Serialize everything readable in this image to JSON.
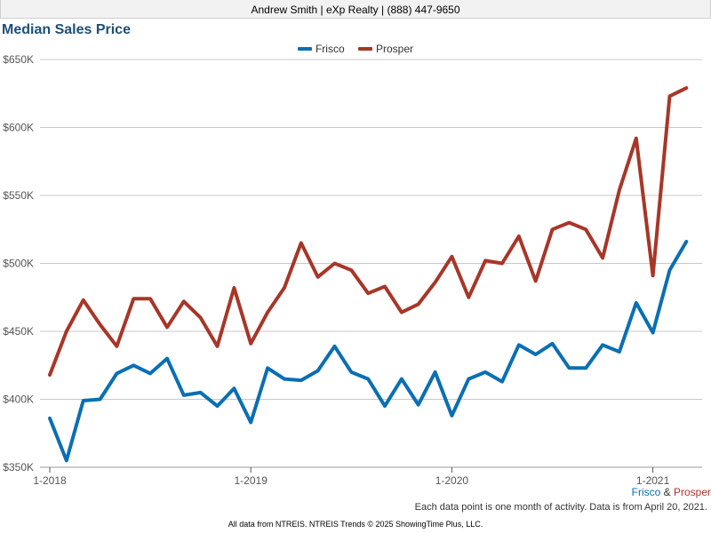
{
  "header": {
    "text": "Andrew Smith | eXp Realty | (888) 447-9650"
  },
  "chart_data": {
    "type": "line",
    "title": "Median Sales Price",
    "xlabel": "",
    "ylabel": "",
    "ylim": [
      350000,
      650000
    ],
    "y_ticks": [
      350000,
      400000,
      450000,
      500000,
      550000,
      600000,
      650000
    ],
    "y_tick_labels": [
      "$350K",
      "$400K",
      "$450K",
      "$500K",
      "$550K",
      "$600K",
      "$650K"
    ],
    "x_tick_labels": [
      "1-2018",
      "1-2019",
      "1-2020",
      "1-2021"
    ],
    "x": [
      "2018-01",
      "2018-02",
      "2018-03",
      "2018-04",
      "2018-05",
      "2018-06",
      "2018-07",
      "2018-08",
      "2018-09",
      "2018-10",
      "2018-11",
      "2018-12",
      "2019-01",
      "2019-02",
      "2019-03",
      "2019-04",
      "2019-05",
      "2019-06",
      "2019-07",
      "2019-08",
      "2019-09",
      "2019-10",
      "2019-11",
      "2019-12",
      "2020-01",
      "2020-02",
      "2020-03",
      "2020-04",
      "2020-05",
      "2020-06",
      "2020-07",
      "2020-08",
      "2020-09",
      "2020-10",
      "2020-11",
      "2020-12",
      "2021-01",
      "2021-02",
      "2021-03"
    ],
    "grid": true,
    "legend_position": "top-center",
    "series": [
      {
        "name": "Frisco",
        "color": "#0a6fb4",
        "values": [
          386000,
          355000,
          399000,
          400000,
          419000,
          425000,
          419000,
          430000,
          403000,
          405000,
          395000,
          408000,
          383000,
          423000,
          415000,
          414000,
          421000,
          439000,
          420000,
          415000,
          395000,
          415000,
          396000,
          420000,
          388000,
          415000,
          420000,
          413000,
          440000,
          433000,
          441000,
          423000,
          423000,
          440000,
          435000,
          471000,
          449000,
          495000,
          516000
        ]
      },
      {
        "name": "Prosper",
        "color": "#a83628",
        "values": [
          418000,
          450000,
          473000,
          455000,
          439000,
          474000,
          474000,
          453000,
          472000,
          460000,
          439000,
          482000,
          441000,
          464000,
          482000,
          515000,
          490000,
          500000,
          495000,
          478000,
          483000,
          464000,
          470000,
          486000,
          505000,
          475000,
          502000,
          500000,
          520000,
          487000,
          525000,
          530000,
          525000,
          504000,
          554000,
          592000,
          491000,
          623000,
          629000
        ]
      }
    ]
  },
  "series_note": {
    "a": "Frisco",
    "amp": " & ",
    "b": "Prosper"
  },
  "footnote": "Each data point is one month of activity. Data is from April 20, 2021.",
  "source": "All data from NTREIS. NTREIS Trends © 2025 ShowingTime Plus, LLC."
}
